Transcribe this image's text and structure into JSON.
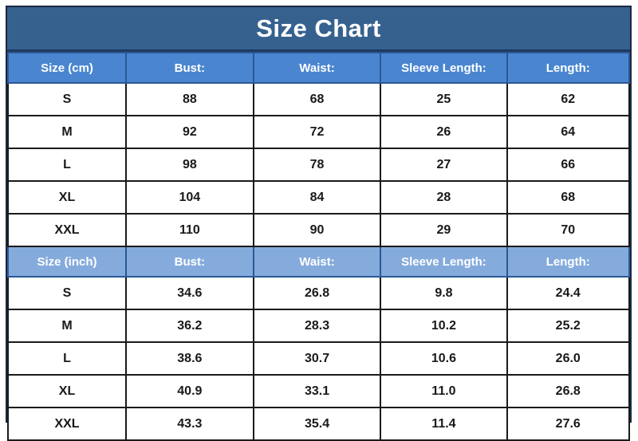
{
  "title": "Size Chart",
  "colors": {
    "title_bg": "#36618F",
    "title_text": "#FFFFFF",
    "header_cm_bg": "#4A86D0",
    "header_inch_bg": "#85ABDC",
    "header_text": "#FFFFFF",
    "header_border": "#2B5894",
    "cell_border": "#1A1A1A",
    "cell_text": "#191919",
    "outer_border": "#1B2940"
  },
  "chart_data": {
    "type": "table",
    "title": "Size Chart",
    "layout": {
      "column_widths_percent": [
        19,
        20.5,
        20.5,
        20.3,
        19.7
      ],
      "sections_count": 2
    },
    "sections": [
      {
        "id": "cm",
        "header": [
          "Size (cm)",
          "Bust:",
          "Waist:",
          "Sleeve Length:",
          "Length:"
        ],
        "rows": [
          [
            "S",
            "88",
            "68",
            "25",
            "62"
          ],
          [
            "M",
            "92",
            "72",
            "26",
            "64"
          ],
          [
            "L",
            "98",
            "78",
            "27",
            "66"
          ],
          [
            "XL",
            "104",
            "84",
            "28",
            "68"
          ],
          [
            "XXL",
            "110",
            "90",
            "29",
            "70"
          ]
        ]
      },
      {
        "id": "inch",
        "header": [
          "Size (inch)",
          "Bust:",
          "Waist:",
          "Sleeve Length:",
          "Length:"
        ],
        "rows": [
          [
            "S",
            "34.6",
            "26.8",
            "9.8",
            "24.4"
          ],
          [
            "M",
            "36.2",
            "28.3",
            "10.2",
            "25.2"
          ],
          [
            "L",
            "38.6",
            "30.7",
            "10.6",
            "26.0"
          ],
          [
            "XL",
            "40.9",
            "33.1",
            "11.0",
            "26.8"
          ],
          [
            "XXL",
            "43.3",
            "35.4",
            "11.4",
            "27.6"
          ]
        ]
      }
    ]
  }
}
